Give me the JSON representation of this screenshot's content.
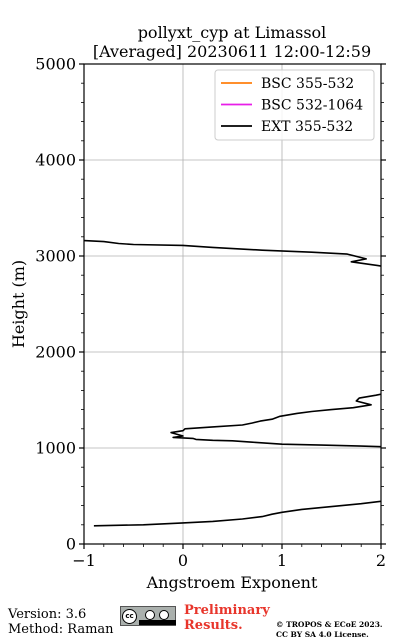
{
  "chart_data": {
    "type": "line",
    "title": "pollyxt_cyp at Limassol",
    "subtitle": "[Averaged] 20230611 12:00-12:59",
    "xlabel": "Angstroem Exponent",
    "ylabel": "Height (m)",
    "xlim": [
      -1,
      2
    ],
    "ylim": [
      0,
      5000
    ],
    "x_ticks": [
      -1,
      0,
      1,
      2
    ],
    "x_tick_labels": [
      "−1",
      "0",
      "1",
      "2"
    ],
    "y_ticks": [
      0,
      1000,
      2000,
      3000,
      4000,
      5000
    ],
    "y_tick_labels": [
      "0",
      "1000",
      "2000",
      "3000",
      "4000",
      "5000"
    ],
    "grid": true,
    "legend_position": "top-right",
    "series": [
      {
        "name": "BSC 355-532",
        "color": "#ff7f0e",
        "points": []
      },
      {
        "name": "BSC 532-1064",
        "color": "#e81ee8",
        "points": []
      },
      {
        "name": "EXT 355-532",
        "color": "#000000",
        "points": [
          [
            -0.9,
            190
          ],
          [
            -0.4,
            200
          ],
          [
            0.0,
            220
          ],
          [
            0.3,
            235
          ],
          [
            0.6,
            260
          ],
          [
            0.8,
            285
          ],
          [
            0.9,
            310
          ],
          [
            1.0,
            330
          ],
          [
            1.2,
            360
          ],
          [
            1.5,
            390
          ],
          [
            1.8,
            420
          ],
          [
            2.0,
            445
          ],
          [
            2.1,
            460
          ],
          null,
          [
            2.1,
            1010
          ],
          [
            1.8,
            1020
          ],
          [
            1.4,
            1030
          ],
          [
            1.0,
            1040
          ],
          [
            0.7,
            1060
          ],
          [
            0.5,
            1075
          ],
          [
            0.3,
            1080
          ],
          [
            0.13,
            1090
          ],
          [
            0.1,
            1100
          ],
          [
            -0.1,
            1110
          ],
          [
            0.0,
            1125
          ],
          [
            -0.12,
            1160
          ],
          [
            0.0,
            1180
          ],
          [
            0.02,
            1200
          ],
          [
            0.3,
            1220
          ],
          [
            0.6,
            1240
          ],
          [
            0.7,
            1260
          ],
          [
            0.78,
            1280
          ],
          [
            0.9,
            1300
          ],
          [
            0.98,
            1330
          ],
          [
            1.15,
            1360
          ],
          [
            1.3,
            1380
          ],
          [
            1.5,
            1400
          ],
          [
            1.72,
            1420
          ],
          [
            1.9,
            1450
          ],
          [
            1.75,
            1490
          ],
          [
            1.78,
            1520
          ],
          [
            1.95,
            1550
          ],
          [
            2.1,
            1580
          ],
          null,
          [
            2.1,
            2880
          ],
          [
            1.97,
            2900
          ],
          [
            1.7,
            2940
          ],
          [
            1.85,
            2970
          ],
          [
            1.66,
            3020
          ],
          [
            1.3,
            3040
          ],
          [
            0.8,
            3060
          ],
          [
            0.3,
            3090
          ],
          [
            0.0,
            3110
          ],
          [
            -0.5,
            3120
          ],
          [
            -0.65,
            3130
          ],
          [
            -0.8,
            3150
          ],
          [
            -1.0,
            3160
          ],
          [
            -1.2,
            3170
          ]
        ]
      }
    ]
  },
  "footer": {
    "version": "Version: 3.6",
    "method": "Method: Raman",
    "preliminary_line1": "Preliminary",
    "preliminary_line2": "Results.",
    "copyright_line1": "© TROPOS & ECoE 2023.",
    "copyright_line2": "CC BY SA 4.0 License."
  }
}
